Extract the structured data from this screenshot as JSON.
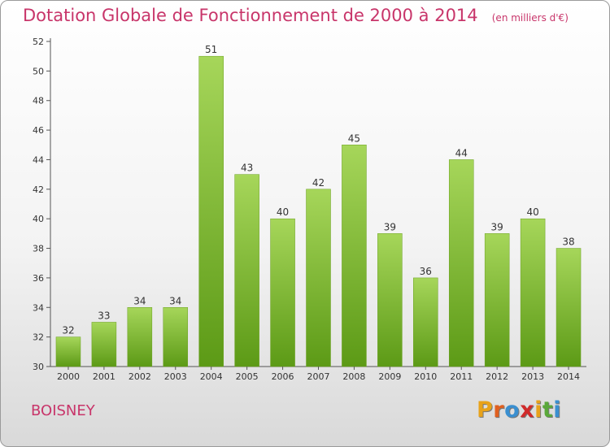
{
  "title": {
    "main": "Dotation Globale de Fonctionnement de 2000 à 2014",
    "unit": "(en milliers d'€)"
  },
  "commune": "BOISNEY",
  "logo": {
    "text": "Proxiti"
  },
  "colors": {
    "title": "#c8356a",
    "bar_top": "#a6d65a",
    "bar_bottom": "#5c9a16"
  },
  "chart_data": {
    "type": "bar",
    "title": "Dotation Globale de Fonctionnement de 2000 à 2014",
    "subtitle": "(en milliers d'€)",
    "xlabel": "",
    "ylabel": "",
    "categories": [
      "2000",
      "2001",
      "2002",
      "2003",
      "2004",
      "2005",
      "2006",
      "2007",
      "2008",
      "2009",
      "2010",
      "2011",
      "2012",
      "2013",
      "2014"
    ],
    "values": [
      32,
      33,
      34,
      34,
      51,
      43,
      40,
      42,
      45,
      39,
      36,
      44,
      39,
      40,
      38
    ],
    "ylim": [
      30,
      52
    ],
    "yticks": [
      30,
      32,
      34,
      36,
      38,
      40,
      42,
      44,
      46,
      48,
      50,
      52
    ],
    "grid": false,
    "legend": "none"
  }
}
